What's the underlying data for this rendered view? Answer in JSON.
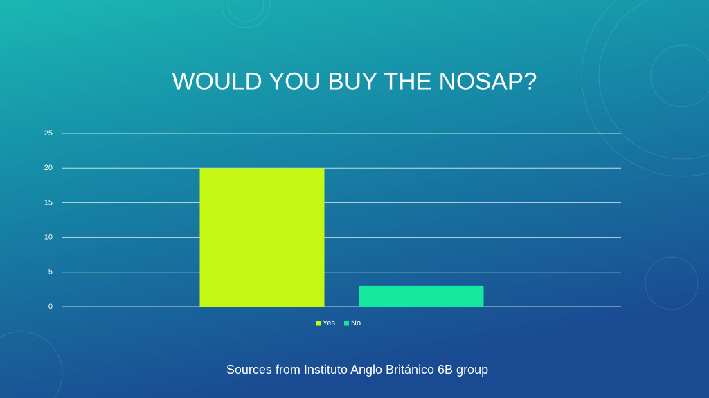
{
  "chart_data": {
    "type": "bar",
    "title": "WOULD YOU BUY THE NOSAP?",
    "categories": [
      null
    ],
    "series": [
      {
        "name": "Yes",
        "color": "#c5f714",
        "values": [
          20
        ]
      },
      {
        "name": "No",
        "color": "#17e8a0",
        "values": [
          3
        ]
      }
    ],
    "ylim": [
      0,
      25
    ],
    "yticks": [
      0,
      5,
      10,
      15,
      20,
      25
    ],
    "grid": true,
    "legend": "bottom",
    "source": "Sources from Instituto Anglo Británico 6B group"
  }
}
